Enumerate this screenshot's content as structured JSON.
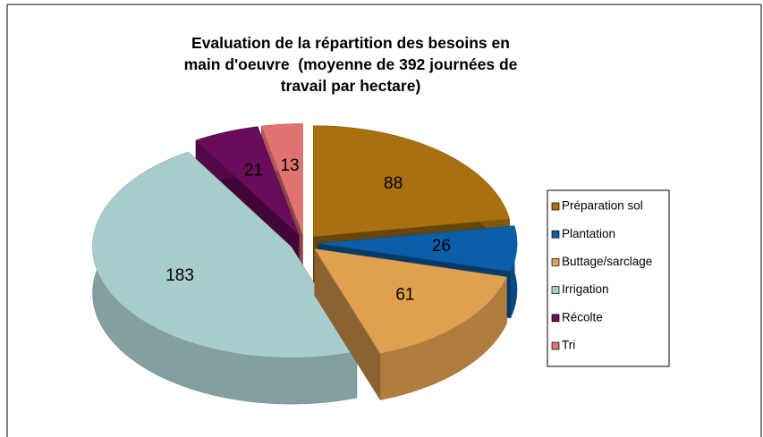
{
  "chart_data": {
    "type": "pie3d",
    "title": "Evaluation de la répartition des besoins en main d'oeuvre  (moyenne de 392 journées de travail par hectare)",
    "categories": [
      "Préparation sol",
      "Plantation",
      "Buttage/sarclage",
      "Irrigation",
      "Récolte",
      "Tri"
    ],
    "values": [
      88,
      26,
      61,
      183,
      21,
      13
    ],
    "colors": [
      "#a8700f",
      "#0a5fa8",
      "#e0a050",
      "#a8cccc",
      "#6a0c5a",
      "#e07272"
    ],
    "legend": "right"
  }
}
